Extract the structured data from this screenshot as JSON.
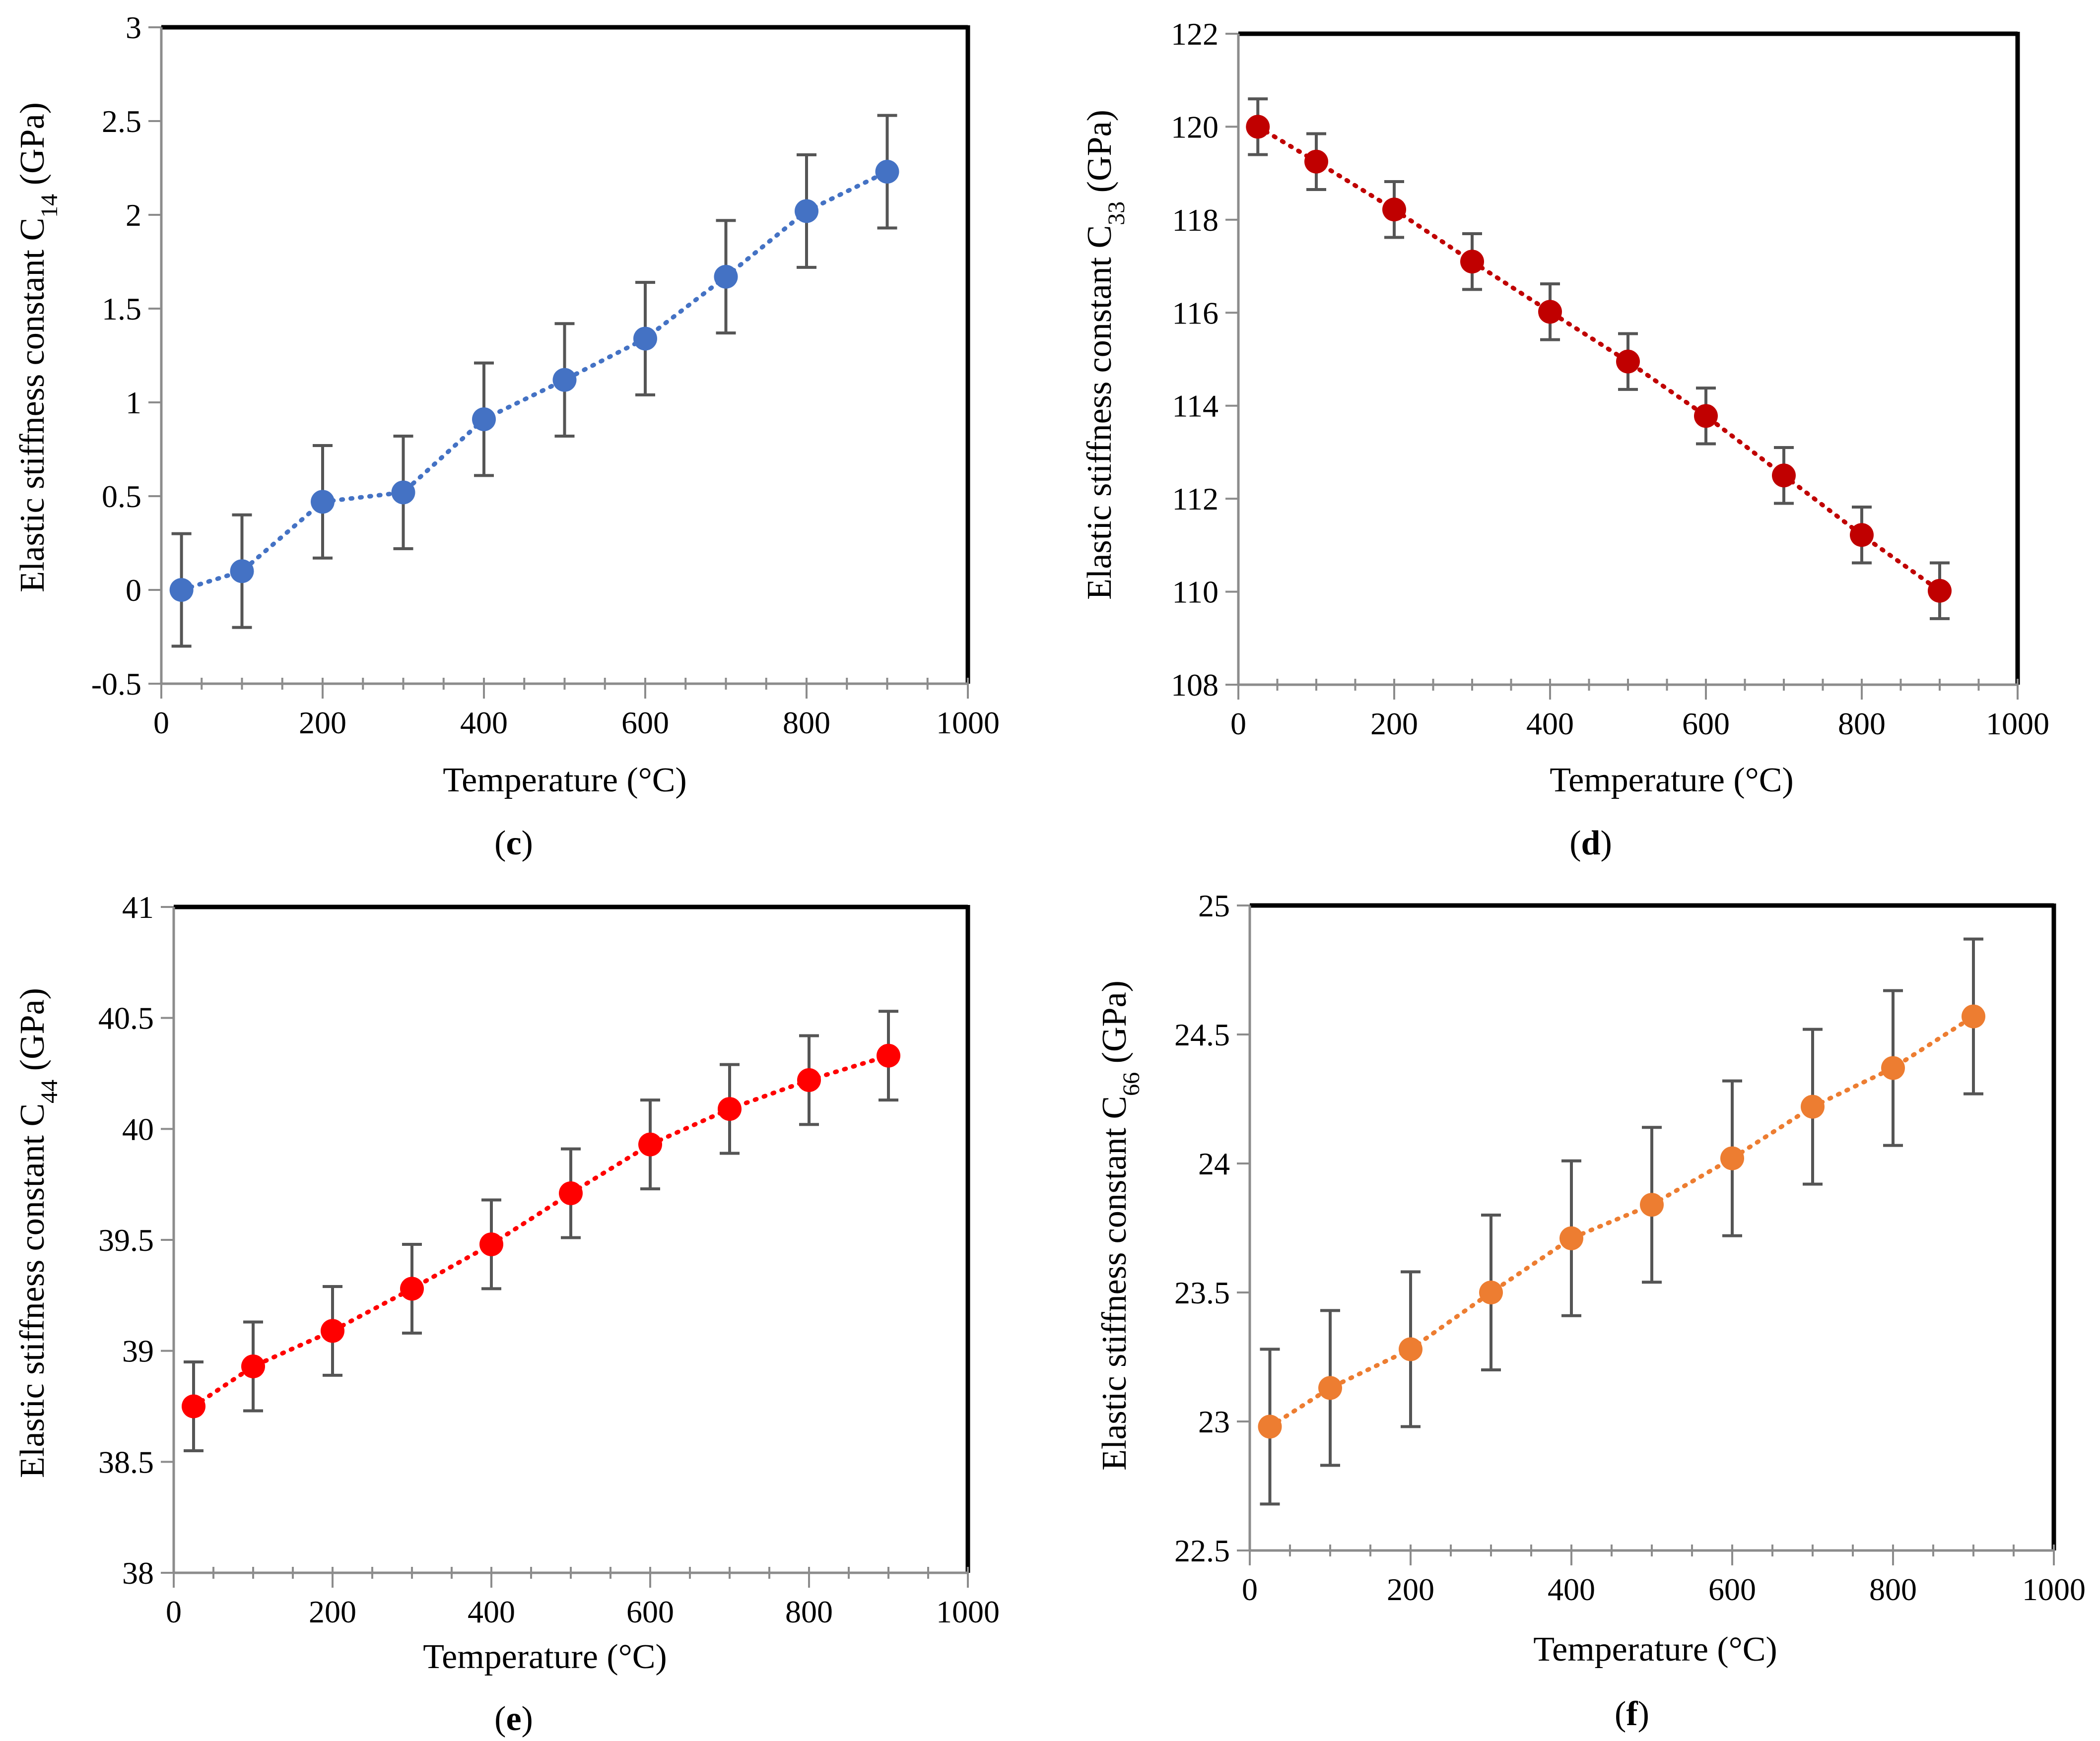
{
  "chart_data": [
    {
      "type": "scatter",
      "panel_label": "c",
      "xlabel": "Temperature (°C)",
      "ylabel_prefix": "Elastic stiffness constant C",
      "ylabel_subscript": "14",
      "ylabel_suffix": " (GPa)",
      "xlim": [
        0,
        1000
      ],
      "ylim": [
        -0.5,
        3
      ],
      "xticks": [
        0,
        200,
        400,
        600,
        800,
        1000
      ],
      "xtick_labels": [
        "0",
        "200",
        "400",
        "600",
        "800",
        "1000"
      ],
      "yticks": [
        -0.5,
        0,
        0.5,
        1,
        1.5,
        2,
        2.5,
        3
      ],
      "ytick_labels": [
        "-0.5",
        "0",
        "0.5",
        "1",
        "1.5",
        "2",
        "2.5",
        "3"
      ],
      "color": "#4472C4",
      "trendline": "dotted",
      "series": [
        {
          "name": "C14",
          "x": [
            25,
            100,
            200,
            300,
            400,
            500,
            600,
            700,
            800,
            900
          ],
          "y": [
            0,
            0.1,
            0.47,
            0.52,
            0.91,
            1.12,
            1.34,
            1.67,
            2.02,
            2.23
          ],
          "error": 0.3
        }
      ]
    },
    {
      "type": "scatter",
      "panel_label": "d",
      "xlabel": "Temperature (°C)",
      "ylabel_prefix": "Elastic stiffness constant C",
      "ylabel_subscript": "33",
      "ylabel_suffix": " (GPa)",
      "xlim": [
        0,
        1000
      ],
      "ylim": [
        108,
        122
      ],
      "xticks": [
        0,
        200,
        400,
        600,
        800,
        1000
      ],
      "xtick_labels": [
        "0",
        "200",
        "400",
        "600",
        "800",
        "1000"
      ],
      "yticks": [
        108,
        110,
        112,
        114,
        116,
        118,
        120,
        122
      ],
      "ytick_labels": [
        "108",
        "110",
        "112",
        "114",
        "116",
        "118",
        "120",
        "122"
      ],
      "color": "#C00000",
      "trendline": "dotted",
      "series": [
        {
          "name": "C33",
          "x": [
            25,
            100,
            200,
            300,
            400,
            500,
            600,
            700,
            800,
            900
          ],
          "y": [
            120,
            119.25,
            118.22,
            117.1,
            116.02,
            114.95,
            113.78,
            112.5,
            111.22,
            110.02
          ],
          "error": 0.6
        }
      ]
    },
    {
      "type": "scatter",
      "panel_label": "e",
      "xlabel": "Temperature (°C)",
      "ylabel_prefix": "Elastic stiffness constant C",
      "ylabel_subscript": "44",
      "ylabel_suffix": " (GPa)",
      "xlim": [
        0,
        1000
      ],
      "ylim": [
        38,
        41
      ],
      "xticks": [
        0,
        200,
        400,
        600,
        800,
        1000
      ],
      "xtick_labels": [
        "0",
        "200",
        "400",
        "600",
        "800",
        "1000"
      ],
      "yticks": [
        38,
        38.5,
        39,
        39.5,
        40,
        40.5,
        41
      ],
      "ytick_labels": [
        "38",
        "38.5",
        "39",
        "39.5",
        "40",
        "40.5",
        "41"
      ],
      "color": "#FF0000",
      "trendline": "dotted",
      "series": [
        {
          "name": "C44",
          "x": [
            25,
            100,
            200,
            300,
            400,
            500,
            600,
            700,
            800,
            900
          ],
          "y": [
            38.75,
            38.93,
            39.09,
            39.28,
            39.48,
            39.71,
            39.93,
            40.09,
            40.22,
            40.33
          ],
          "error": 0.2
        }
      ]
    },
    {
      "type": "scatter",
      "panel_label": "f",
      "xlabel": "Temperature (°C)",
      "ylabel_prefix": "Elastic stiffness constant C",
      "ylabel_subscript": "66",
      "ylabel_suffix": " (GPa)",
      "xlim": [
        0,
        1000
      ],
      "ylim": [
        22.5,
        25
      ],
      "xticks": [
        0,
        200,
        400,
        600,
        800,
        1000
      ],
      "xtick_labels": [
        "0",
        "200",
        "400",
        "600",
        "800",
        "1000"
      ],
      "yticks": [
        22.5,
        23,
        23.5,
        24,
        24.5,
        25
      ],
      "ytick_labels": [
        "22.5",
        "23",
        "23.5",
        "24",
        "24.5",
        "25"
      ],
      "color": "#ED7D31",
      "trendline": "dotted",
      "series": [
        {
          "name": "C66",
          "x": [
            25,
            100,
            200,
            300,
            400,
            500,
            600,
            700,
            800,
            900
          ],
          "y": [
            22.98,
            23.13,
            23.28,
            23.5,
            23.71,
            23.84,
            24.02,
            24.22,
            24.37,
            24.57
          ],
          "error": 0.3
        }
      ]
    }
  ]
}
